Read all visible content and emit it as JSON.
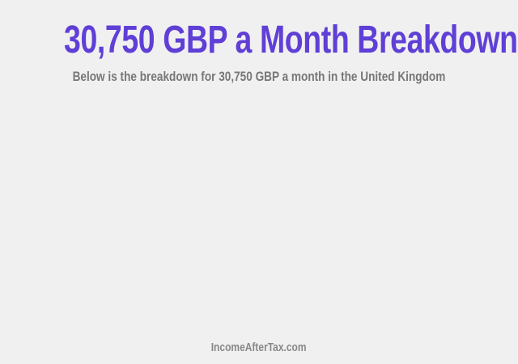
{
  "header": {
    "title": "30,750 GBP a Month Breakdown",
    "subtitle": "Below is the breakdown for 30,750 GBP a month in the United Kingdom"
  },
  "footer": {
    "site": "IncomeAfterTax.com"
  },
  "colors": {
    "title": "#5f3fd6",
    "subtitle": "#777777",
    "background": "#f0f0f0"
  }
}
